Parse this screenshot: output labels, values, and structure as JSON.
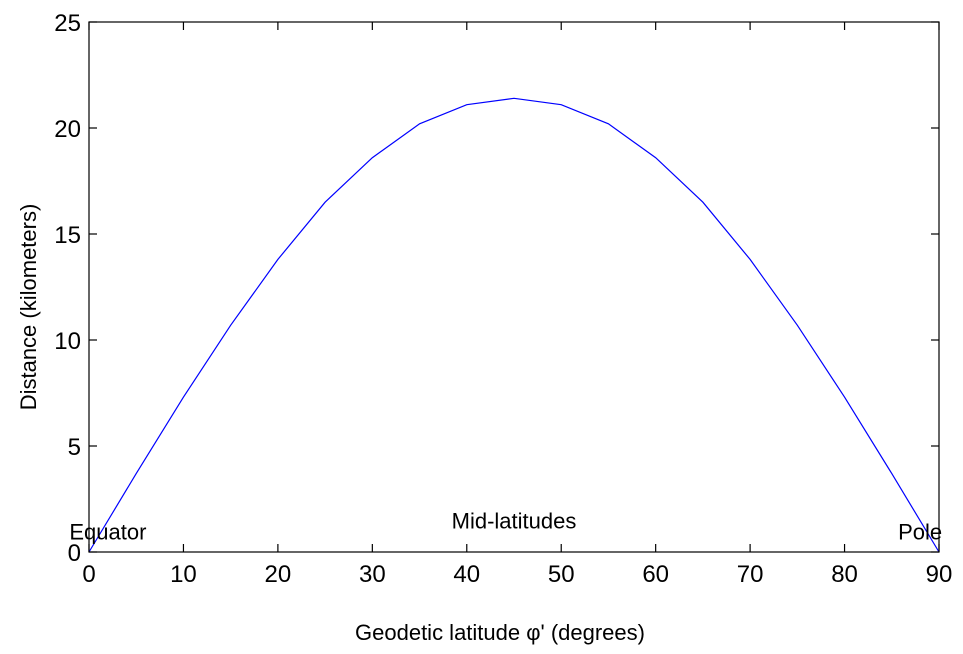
{
  "chart_data": {
    "type": "line",
    "title": "",
    "xlabel": "Geodetic latitude φ' (degrees)",
    "ylabel": "Distance (kilometers)",
    "xlim": [
      0,
      90
    ],
    "ylim": [
      0,
      25
    ],
    "xticks": [
      0,
      10,
      20,
      30,
      40,
      50,
      60,
      70,
      80,
      90
    ],
    "yticks": [
      0,
      5,
      10,
      15,
      20,
      25
    ],
    "grid": false,
    "line_color": "#0000ff",
    "series": [
      {
        "x": [
          0,
          5,
          10,
          15,
          20,
          25,
          30,
          35,
          40,
          45,
          50,
          55,
          60,
          65,
          70,
          75,
          80,
          85,
          90
        ],
        "y": [
          0,
          3.7,
          7.3,
          10.7,
          13.8,
          16.5,
          18.6,
          20.2,
          21.1,
          21.4,
          21.1,
          20.2,
          18.6,
          16.5,
          13.8,
          10.7,
          7.3,
          3.7,
          0
        ]
      }
    ],
    "annotations": [
      {
        "text": "Equator",
        "x": 2,
        "y": 0.6
      },
      {
        "text": "Mid-latitudes",
        "x": 45,
        "y": 1.1
      },
      {
        "text": "Pole",
        "x": 88,
        "y": 0.6
      }
    ]
  }
}
